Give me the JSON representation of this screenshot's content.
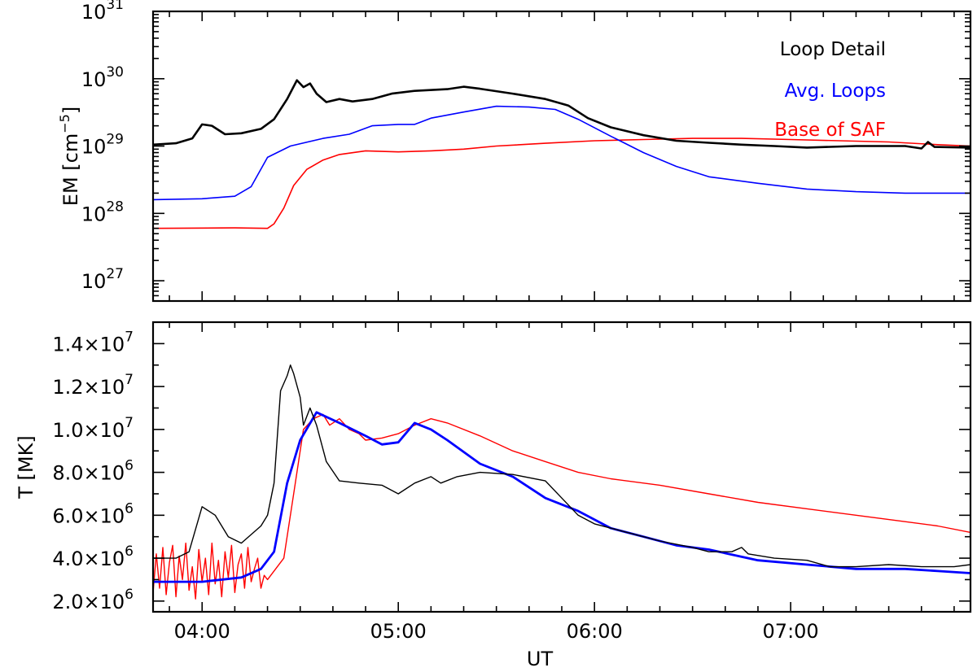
{
  "chart_data": [
    {
      "type": "line",
      "ylabel": "EM [cm",
      "ylabel_sup": "−5",
      "ylabel_close": "]",
      "yscale": "log",
      "ylim": [
        5e+26,
        1e+31
      ],
      "xlim": [
        "03:45",
        "07:55"
      ],
      "xticks": [
        "04:00",
        "05:00",
        "06:00",
        "07:00"
      ],
      "yticks": [
        {
          "value": 1e+27,
          "base": "10",
          "exp": "27"
        },
        {
          "value": 1e+28,
          "base": "10",
          "exp": "28"
        },
        {
          "value": 1e+29,
          "base": "10",
          "exp": "29"
        },
        {
          "value": 1e+30,
          "base": "10",
          "exp": "30"
        },
        {
          "value": 1e+31,
          "base": "10",
          "exp": "31"
        }
      ],
      "grid": false,
      "legend_position": "top-right",
      "series": [
        {
          "name": "Loop Detail",
          "color": "#000000",
          "width": 2.6,
          "points": [
            [
              "03:45",
              1.05e+29
            ],
            [
              "03:52",
              1.1e+29
            ],
            [
              "03:57",
              1.3e+29
            ],
            [
              "04:00",
              2.1e+29
            ],
            [
              "04:03",
              2e+29
            ],
            [
              "04:07",
              1.5e+29
            ],
            [
              "04:12",
              1.55e+29
            ],
            [
              "04:18",
              1.8e+29
            ],
            [
              "04:22",
              2.5e+29
            ],
            [
              "04:26",
              5e+29
            ],
            [
              "04:29",
              9.5e+29
            ],
            [
              "04:31",
              7.5e+29
            ],
            [
              "04:33",
              8.5e+29
            ],
            [
              "04:35",
              6e+29
            ],
            [
              "04:38",
              4.5e+29
            ],
            [
              "04:42",
              5e+29
            ],
            [
              "04:46",
              4.6e+29
            ],
            [
              "04:52",
              5e+29
            ],
            [
              "04:58",
              6e+29
            ],
            [
              "05:05",
              6.6e+29
            ],
            [
              "05:15",
              7e+29
            ],
            [
              "05:20",
              7.6e+29
            ],
            [
              "05:25",
              7.1e+29
            ],
            [
              "05:35",
              6e+29
            ],
            [
              "05:45",
              5e+29
            ],
            [
              "05:52",
              4e+29
            ],
            [
              "05:58",
              2.6e+29
            ],
            [
              "06:05",
              1.9e+29
            ],
            [
              "06:15",
              1.45e+29
            ],
            [
              "06:25",
              1.2e+29
            ],
            [
              "06:35",
              1.12e+29
            ],
            [
              "06:45",
              1.05e+29
            ],
            [
              "06:55",
              1e+29
            ],
            [
              "07:05",
              9.5e+28
            ],
            [
              "07:20",
              1e+29
            ],
            [
              "07:35",
              1e+29
            ],
            [
              "07:40",
              9.2e+28
            ],
            [
              "07:42",
              1.15e+29
            ],
            [
              "07:44",
              9.7e+28
            ],
            [
              "07:55",
              9.5e+28
            ]
          ]
        },
        {
          "name": "Avg. Loops",
          "color": "#0000ff",
          "width": 1.6,
          "points": [
            [
              "03:45",
              1.6e+28
            ],
            [
              "04:00",
              1.65e+28
            ],
            [
              "04:10",
              1.8e+28
            ],
            [
              "04:15",
              2.5e+28
            ],
            [
              "04:20",
              6.8e+28
            ],
            [
              "04:27",
              1e+29
            ],
            [
              "04:37",
              1.3e+29
            ],
            [
              "04:45",
              1.5e+29
            ],
            [
              "04:52",
              2e+29
            ],
            [
              "05:00",
              2.1e+29
            ],
            [
              "05:05",
              2.1e+29
            ],
            [
              "05:10",
              2.6e+29
            ],
            [
              "05:20",
              3.2e+29
            ],
            [
              "05:30",
              3.9e+29
            ],
            [
              "05:40",
              3.8e+29
            ],
            [
              "05:48",
              3.5e+29
            ],
            [
              "05:55",
              2.5e+29
            ],
            [
              "06:05",
              1.4e+29
            ],
            [
              "06:15",
              8e+28
            ],
            [
              "06:25",
              5e+28
            ],
            [
              "06:35",
              3.5e+28
            ],
            [
              "06:50",
              2.8e+28
            ],
            [
              "07:05",
              2.3e+28
            ],
            [
              "07:20",
              2.1e+28
            ],
            [
              "07:35",
              2e+28
            ],
            [
              "07:55",
              2e+28
            ]
          ]
        },
        {
          "name": "Base of SAF",
          "color": "#ff0000",
          "width": 1.6,
          "points": [
            [
              "03:45",
              6e+27
            ],
            [
              "04:10",
              6.1e+27
            ],
            [
              "04:20",
              6e+27
            ],
            [
              "04:22",
              7e+27
            ],
            [
              "04:25",
              1.2e+28
            ],
            [
              "04:28",
              2.6e+28
            ],
            [
              "04:32",
              4.5e+28
            ],
            [
              "04:37",
              6.2e+28
            ],
            [
              "04:42",
              7.5e+28
            ],
            [
              "04:50",
              8.5e+28
            ],
            [
              "05:00",
              8.2e+28
            ],
            [
              "05:10",
              8.5e+28
            ],
            [
              "05:20",
              9e+28
            ],
            [
              "05:30",
              1e+29
            ],
            [
              "05:45",
              1.1e+29
            ],
            [
              "06:00",
              1.2e+29
            ],
            [
              "06:15",
              1.25e+29
            ],
            [
              "06:30",
              1.3e+29
            ],
            [
              "06:45",
              1.3e+29
            ],
            [
              "07:00",
              1.25e+29
            ],
            [
              "07:15",
              1.2e+29
            ],
            [
              "07:30",
              1.15e+29
            ],
            [
              "07:45",
              1.05e+29
            ],
            [
              "07:55",
              1e+29
            ]
          ]
        }
      ]
    },
    {
      "type": "line",
      "xlabel": "UT",
      "ylabel": "T [MK]",
      "yscale": "linear",
      "ylim": [
        1500000.0,
        15000000.0
      ],
      "xlim": [
        "03:45",
        "07:55"
      ],
      "xticks": [
        "04:00",
        "05:00",
        "06:00",
        "07:00"
      ],
      "yticks": [
        {
          "value": 2000000.0,
          "mant": "2.0",
          "exp": "6"
        },
        {
          "value": 4000000.0,
          "mant": "4.0",
          "exp": "6"
        },
        {
          "value": 6000000.0,
          "mant": "6.0",
          "exp": "6"
        },
        {
          "value": 8000000.0,
          "mant": "8.0",
          "exp": "6"
        },
        {
          "value": 10000000.0,
          "mant": "1.0",
          "exp": "7"
        },
        {
          "value": 12000000.0,
          "mant": "1.2",
          "exp": "7"
        },
        {
          "value": 14000000.0,
          "mant": "1.4",
          "exp": "7"
        }
      ],
      "tick_times": "×10",
      "grid": false,
      "series": [
        {
          "color": "#000000",
          "width": 1.4,
          "points": [
            [
              "03:45",
              4000000.0
            ],
            [
              "03:52",
              4000000.0
            ],
            [
              "03:56",
              4300000.0
            ],
            [
              "04:00",
              6400000.0
            ],
            [
              "04:04",
              6000000.0
            ],
            [
              "04:08",
              5000000.0
            ],
            [
              "04:12",
              4700000.0
            ],
            [
              "04:18",
              5500000.0
            ],
            [
              "04:20",
              6000000.0
            ],
            [
              "04:22",
              7500000.0
            ],
            [
              "04:24",
              11800000.0
            ],
            [
              "04:26",
              12500000.0
            ],
            [
              "04:27",
              13000000.0
            ],
            [
              "04:28",
              12600000.0
            ],
            [
              "04:30",
              11500000.0
            ],
            [
              "04:31",
              10200000.0
            ],
            [
              "04:33",
              11000000.0
            ],
            [
              "04:35",
              10200000.0
            ],
            [
              "04:38",
              8500000.0
            ],
            [
              "04:42",
              7600000.0
            ],
            [
              "04:48",
              7500000.0
            ],
            [
              "04:55",
              7400000.0
            ],
            [
              "05:00",
              7000000.0
            ],
            [
              "05:05",
              7500000.0
            ],
            [
              "05:10",
              7800000.0
            ],
            [
              "05:13",
              7500000.0
            ],
            [
              "05:18",
              7800000.0
            ],
            [
              "05:25",
              8000000.0
            ],
            [
              "05:35",
              7900000.0
            ],
            [
              "05:45",
              7600000.0
            ],
            [
              "05:50",
              6800000.0
            ],
            [
              "05:55",
              6000000.0
            ],
            [
              "06:00",
              5600000.0
            ],
            [
              "06:10",
              5200000.0
            ],
            [
              "06:20",
              4800000.0
            ],
            [
              "06:30",
              4500000.0
            ],
            [
              "06:35",
              4300000.0
            ],
            [
              "06:42",
              4300000.0
            ],
            [
              "06:45",
              4500000.0
            ],
            [
              "06:47",
              4200000.0
            ],
            [
              "06:55",
              4000000.0
            ],
            [
              "07:05",
              3900000.0
            ],
            [
              "07:12",
              3600000.0
            ],
            [
              "07:20",
              3600000.0
            ],
            [
              "07:30",
              3700000.0
            ],
            [
              "07:40",
              3600000.0
            ],
            [
              "07:50",
              3600000.0
            ],
            [
              "07:55",
              3700000.0
            ]
          ]
        },
        {
          "color": "#0000ff",
          "width": 2.8,
          "points": [
            [
              "03:45",
              2900000.0
            ],
            [
              "04:00",
              2900000.0
            ],
            [
              "04:12",
              3100000.0
            ],
            [
              "04:18",
              3500000.0
            ],
            [
              "04:22",
              4300000.0
            ],
            [
              "04:26",
              7500000.0
            ],
            [
              "04:30",
              9500000.0
            ],
            [
              "04:35",
              10800000.0
            ],
            [
              "04:42",
              10300000.0
            ],
            [
              "04:50",
              9700000.0
            ],
            [
              "04:55",
              9300000.0
            ],
            [
              "05:00",
              9400000.0
            ],
            [
              "05:05",
              10300000.0
            ],
            [
              "05:10",
              10000000.0
            ],
            [
              "05:15",
              9500000.0
            ],
            [
              "05:25",
              8400000.0
            ],
            [
              "05:35",
              7800000.0
            ],
            [
              "05:45",
              6800000.0
            ],
            [
              "05:55",
              6200000.0
            ],
            [
              "06:05",
              5400000.0
            ],
            [
              "06:15",
              5000000.0
            ],
            [
              "06:25",
              4600000.0
            ],
            [
              "06:35",
              4400000.0
            ],
            [
              "06:50",
              3900000.0
            ],
            [
              "07:05",
              3700000.0
            ],
            [
              "07:20",
              3500000.0
            ],
            [
              "07:35",
              3500000.0
            ],
            [
              "07:45",
              3400000.0
            ],
            [
              "07:55",
              3300000.0
            ]
          ]
        },
        {
          "color": "#ff0000",
          "width": 1.4,
          "points": [
            [
              "03:45",
              3000000.0
            ],
            [
              "04:20",
              3000000.0
            ],
            [
              "04:25",
              4000000.0
            ],
            [
              "04:28",
              7000000.0
            ],
            [
              "04:31",
              10000000.0
            ],
            [
              "04:34",
              10500000.0
            ],
            [
              "04:37",
              10700000.0
            ],
            [
              "04:39",
              10200000.0
            ],
            [
              "04:42",
              10500000.0
            ],
            [
              "04:45",
              10000000.0
            ],
            [
              "04:48",
              9800000.0
            ],
            [
              "04:50",
              9500000.0
            ],
            [
              "04:55",
              9600000.0
            ],
            [
              "05:00",
              9800000.0
            ],
            [
              "05:05",
              10200000.0
            ],
            [
              "05:10",
              10500000.0
            ],
            [
              "05:15",
              10300000.0
            ],
            [
              "05:25",
              9700000.0
            ],
            [
              "05:35",
              9000000.0
            ],
            [
              "05:45",
              8500000.0
            ],
            [
              "05:55",
              8000000.0
            ],
            [
              "06:05",
              7700000.0
            ],
            [
              "06:20",
              7400000.0
            ],
            [
              "06:35",
              7000000.0
            ],
            [
              "06:50",
              6600000.0
            ],
            [
              "07:05",
              6300000.0
            ],
            [
              "07:20",
              6000000.0
            ],
            [
              "07:35",
              5700000.0
            ],
            [
              "07:45",
              5500000.0
            ],
            [
              "07:55",
              5200000.0
            ]
          ],
          "noise_segment": {
            "x": [
              "03:45",
              "03:46",
              "03:47",
              "03:48",
              "03:49",
              "03:50",
              "03:51",
              "03:52",
              "03:53",
              "03:54",
              "03:55",
              "03:56",
              "03:57",
              "03:58",
              "03:59",
              "04:00",
              "04:01",
              "04:02",
              "04:03",
              "04:04",
              "04:05",
              "04:06",
              "04:07",
              "04:08",
              "04:09",
              "04:10",
              "04:11",
              "04:12",
              "04:13",
              "04:14",
              "04:15",
              "04:16",
              "04:17",
              "04:18",
              "04:19",
              "04:20"
            ],
            "y": [
              2400000.0,
              4200000.0,
              2600000.0,
              4500000.0,
              2300000.0,
              3800000.0,
              4600000.0,
              2200000.0,
              4100000.0,
              3000000.0,
              4700000.0,
              2500000.0,
              3600000.0,
              2100000.0,
              4400000.0,
              2900000.0,
              4000000.0,
              2300000.0,
              4700000.0,
              2800000.0,
              3900000.0,
              2200000.0,
              4300000.0,
              3100000.0,
              4600000.0,
              2400000.0,
              3700000.0,
              4200000.0,
              2600000.0,
              4500000.0,
              2900000.0,
              3500000.0,
              4000000.0,
              2600000.0,
              3200000.0,
              3000000.0
            ]
          }
        }
      ]
    }
  ]
}
